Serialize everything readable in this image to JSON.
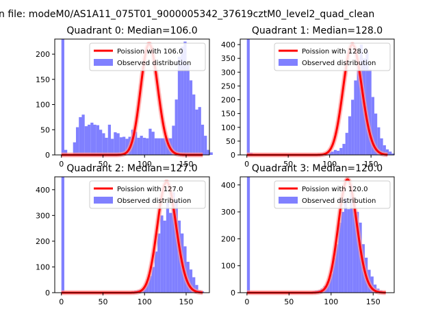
{
  "figure": {
    "suptitle": "n file: modeM0/AS1A11_075T01_9000005342_37619cztM0_level2_quad_clean"
  },
  "style": {
    "hist_color": "#8080ff",
    "poisson_color": "#ff0000",
    "poisson_shadow_color": "#ff9999"
  },
  "chart_data": [
    {
      "type": "bar",
      "title": "Quadrant 0: Median=106.0",
      "median": 106.0,
      "xlim": [
        -8,
        178
      ],
      "ylim": [
        0,
        230
      ],
      "xticks": [
        0,
        50,
        100,
        150
      ],
      "yticks": [
        0,
        50,
        100,
        150,
        200
      ],
      "bin_width": 3.5,
      "bin_start": 0,
      "hist": [
        230,
        10,
        0,
        0,
        25,
        55,
        75,
        80,
        57,
        60,
        64,
        60,
        59,
        50,
        43,
        34,
        60,
        32,
        45,
        43,
        35,
        36,
        32,
        36,
        50,
        46,
        34,
        38,
        34,
        33,
        52,
        46,
        33,
        33,
        33,
        33,
        33,
        33,
        58,
        110,
        195,
        215,
        225,
        180,
        148,
        120,
        90,
        95,
        60,
        38,
        10,
        5
      ],
      "poisson_mean": 106.0,
      "poisson_peak": 220,
      "poisson_range": [
        0,
        170
      ],
      "legend": [
        "Poission with 106.0",
        "Observed distribution"
      ],
      "legend_position": "upper-right"
    },
    {
      "type": "bar",
      "title": "Quadrant 1: Median=128.0",
      "median": 128.0,
      "xlim": [
        -8,
        178
      ],
      "ylim": [
        0,
        420
      ],
      "xticks": [
        0,
        50,
        100,
        150
      ],
      "yticks": [
        0,
        50,
        100,
        150,
        200,
        250,
        300,
        350,
        400
      ],
      "bin_width": 3.5,
      "bin_start": 0,
      "hist": [
        420,
        8,
        0,
        0,
        0,
        0,
        0,
        0,
        0,
        0,
        0,
        0,
        0,
        0,
        0,
        0,
        0,
        0,
        0,
        0,
        0,
        0,
        0,
        0,
        2,
        4,
        6,
        8,
        10,
        12,
        18,
        15,
        25,
        40,
        80,
        140,
        200,
        270,
        330,
        400,
        350,
        380,
        310,
        210,
        150,
        100,
        60,
        35,
        20,
        12,
        5
      ],
      "poisson_mean": 128.0,
      "poisson_peak": 400,
      "poisson_range": [
        0,
        170
      ],
      "legend": [
        "Poission with 128.0",
        "Observed distribution"
      ],
      "legend_position": "upper-right"
    },
    {
      "type": "bar",
      "title": "Quadrant 2: Median=127.0",
      "median": 127.0,
      "xlim": [
        -8,
        178
      ],
      "ylim": [
        0,
        450
      ],
      "xticks": [
        0,
        50,
        100,
        150
      ],
      "yticks": [
        0,
        100,
        200,
        300,
        400
      ],
      "bin_width": 3.5,
      "bin_start": 0,
      "hist": [
        450,
        0,
        0,
        0,
        0,
        0,
        0,
        0,
        0,
        0,
        0,
        0,
        0,
        0,
        0,
        0,
        0,
        0,
        0,
        0,
        0,
        0,
        0,
        4,
        5,
        8,
        10,
        12,
        20,
        40,
        65,
        100,
        160,
        230,
        300,
        280,
        350,
        310,
        390,
        360,
        280,
        230,
        180,
        120,
        90,
        60,
        30,
        10,
        5
      ],
      "poisson_mean": 127.0,
      "poisson_peak": 430,
      "poisson_range": [
        0,
        170
      ],
      "legend": [
        "Poission with 127.0",
        "Observed distribution"
      ],
      "legend_position": "upper-right"
    },
    {
      "type": "bar",
      "title": "Quadrant 3: Median=120.0",
      "median": 120.0,
      "xlim": [
        -8,
        175
      ],
      "ylim": [
        0,
        430
      ],
      "xticks": [
        0,
        50,
        100,
        150
      ],
      "yticks": [
        0,
        100,
        200,
        300,
        400
      ],
      "bin_width": 3.5,
      "bin_start": 0,
      "hist": [
        430,
        0,
        0,
        0,
        0,
        0,
        0,
        0,
        0,
        0,
        0,
        0,
        0,
        0,
        0,
        0,
        0,
        0,
        0,
        0,
        0,
        3,
        5,
        8,
        10,
        15,
        25,
        40,
        70,
        130,
        180,
        260,
        300,
        350,
        310,
        400,
        330,
        300,
        260,
        180,
        130,
        85,
        60,
        30,
        15,
        8
      ],
      "poisson_mean": 120.0,
      "poisson_peak": 420,
      "poisson_range": [
        0,
        165
      ],
      "legend": [
        "Poission with 120.0",
        "Observed distribution"
      ],
      "legend_position": "upper-right"
    }
  ]
}
